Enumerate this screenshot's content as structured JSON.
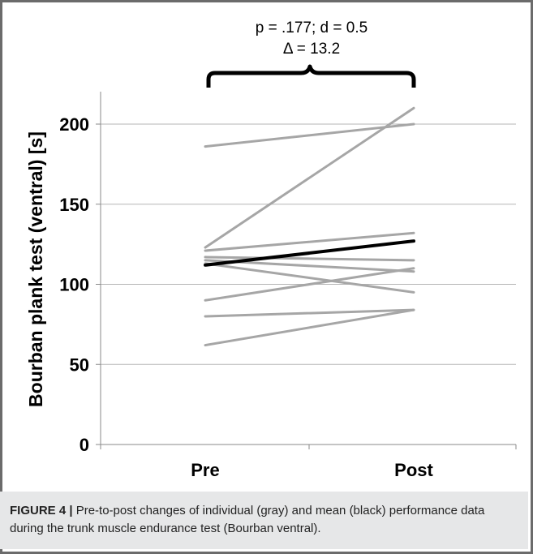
{
  "chart_data": {
    "type": "line",
    "categories": [
      "Pre",
      "Post"
    ],
    "ylabel": "Bourban plank test (ventral) [s]",
    "ylim": [
      0,
      220
    ],
    "yticks": [
      0,
      50,
      100,
      150,
      200
    ],
    "grid": true,
    "annotation": {
      "line1": "p = .177; d = 0.5",
      "line2": "Δ = 13.2"
    },
    "series": [
      {
        "values": [
          186,
          200
        ],
        "color": "#a6a6a6"
      },
      {
        "values": [
          123,
          210
        ],
        "color": "#a6a6a6"
      },
      {
        "values": [
          121,
          132
        ],
        "color": "#a6a6a6"
      },
      {
        "values": [
          117,
          115
        ],
        "color": "#a6a6a6"
      },
      {
        "values": [
          115,
          108
        ],
        "color": "#a6a6a6"
      },
      {
        "values": [
          113,
          95
        ],
        "color": "#a6a6a6"
      },
      {
        "values": [
          90,
          110
        ],
        "color": "#a6a6a6"
      },
      {
        "values": [
          80,
          84
        ],
        "color": "#a6a6a6"
      },
      {
        "values": [
          62,
          84
        ],
        "color": "#a6a6a6"
      },
      {
        "values": [
          112,
          127
        ],
        "color": "#000000",
        "mean": true
      }
    ]
  },
  "caption": {
    "label": "FIGURE 4 |",
    "text": " Pre-to-post changes of individual (gray) and mean (black) performance data during the trunk muscle endurance test (Bourban ventral)."
  }
}
